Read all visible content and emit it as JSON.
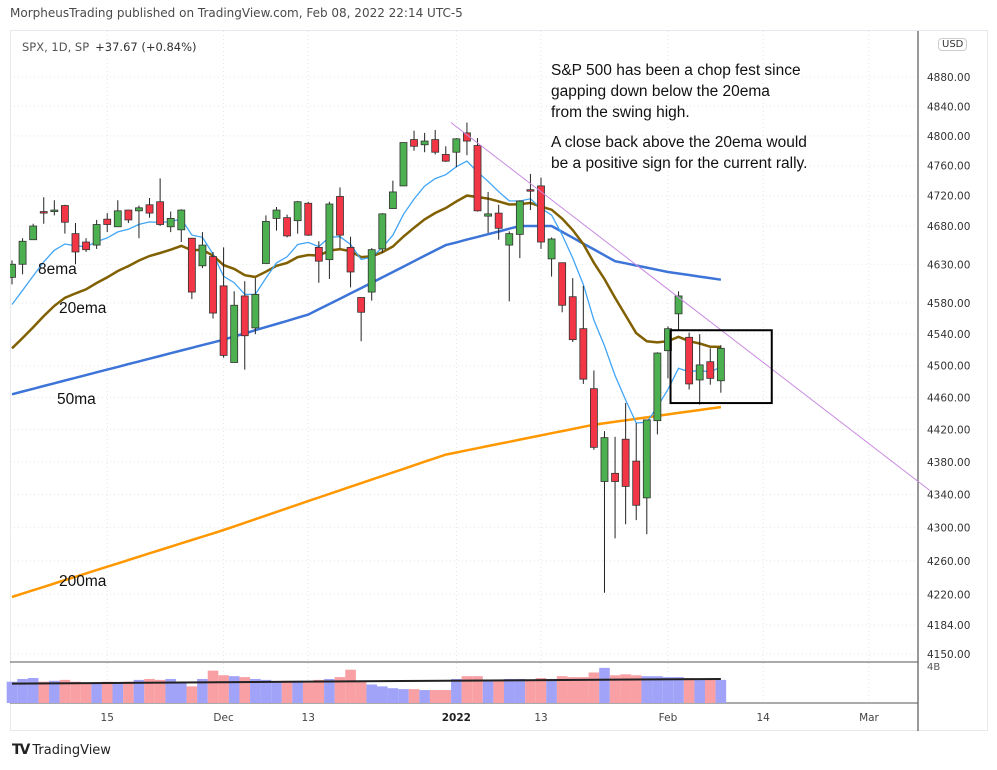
{
  "header": {
    "published": "MorpheusTrading published on TradingView.com, Feb 08, 2022 22:14 UTC-5"
  },
  "legend": {
    "symbol": "SPX, 1D, SP",
    "change": "+37.67 (+0.84%)"
  },
  "currency_badge": "USD",
  "brand": {
    "logo": "TV",
    "name": "TradingView"
  },
  "annotations": {
    "note1": [
      "S&P 500 has been a chop fest since",
      "gapping down below the 20ema",
      "from the swing high."
    ],
    "note2": [
      "A close back above the 20ema would",
      "be a positive sign for the current rally."
    ],
    "ma_labels": {
      "ema8": "8ema",
      "ema20": "20ema",
      "ma50": "50ma",
      "ma200": "200ma"
    }
  },
  "colors": {
    "up": "#4caf50",
    "down": "#f23645",
    "ema8": "#42a5f5",
    "ema20": "#806000",
    "ma50": "#3d74d8",
    "ma200": "#ff9800",
    "trend": "#c98be0",
    "vol_up": "#a0a3f8",
    "vol_down": "#f8a0a4"
  },
  "chart_data": {
    "type": "candlestick",
    "symbol": "SPX",
    "interval": "1D",
    "scale": "log",
    "ylim": [
      4150,
      4900
    ],
    "y_ticks": [
      "4880.00",
      "4840.00",
      "4800.00",
      "4760.00",
      "4720.00",
      "4680.00",
      "4630.00",
      "4580.00",
      "4540.00",
      "4500.00",
      "4460.00",
      "4420.00",
      "4380.00",
      "4340.00",
      "4300.00",
      "4260.00",
      "4220.00",
      "4184.00",
      "4150.00"
    ],
    "x_ticks": [
      {
        "label": "15",
        "index": 9
      },
      {
        "label": "Dec",
        "index": 20
      },
      {
        "label": "13",
        "index": 28
      },
      {
        "label": "2022",
        "index": 42
      },
      {
        "label": "13",
        "index": 50
      },
      {
        "label": "Feb",
        "index": 62
      },
      {
        "label": "14",
        "index": 71
      },
      {
        "label": "Mar",
        "index": 81
      }
    ],
    "volume_tick": "4B",
    "ohlc": [
      [
        4613,
        4635,
        4604,
        4630
      ],
      [
        4630,
        4664,
        4617,
        4660
      ],
      [
        4662,
        4683,
        4662,
        4680
      ],
      [
        4699,
        4718,
        4683,
        4697
      ],
      [
        4701,
        4714,
        4694,
        4701
      ],
      [
        4707,
        4708,
        4670,
        4685
      ],
      [
        4670,
        4684,
        4630,
        4646
      ],
      [
        4659,
        4664,
        4646,
        4649
      ],
      [
        4655,
        4688,
        4650,
        4682
      ],
      [
        4689,
        4697,
        4672,
        4682
      ],
      [
        4679,
        4714,
        4679,
        4700
      ],
      [
        4701,
        4701,
        4684,
        4688
      ],
      [
        4700,
        4707,
        4664,
        4704
      ],
      [
        4708,
        4717,
        4691,
        4697
      ],
      [
        4712,
        4743,
        4680,
        4682
      ],
      [
        4679,
        4699,
        4672,
        4690
      ],
      [
        4675,
        4702,
        4659,
        4701
      ],
      [
        4664,
        4664,
        4585,
        4594
      ],
      [
        4628,
        4672,
        4625,
        4655
      ],
      [
        4640,
        4646,
        4560,
        4567
      ],
      [
        4602,
        4652,
        4510,
        4513
      ],
      [
        4504,
        4595,
        4504,
        4577
      ],
      [
        4589,
        4608,
        4495,
        4538
      ],
      [
        4548,
        4612,
        4540,
        4591
      ],
      [
        4631,
        4694,
        4631,
        4686
      ],
      [
        4690,
        4705,
        4674,
        4701
      ],
      [
        4691,
        4695,
        4665,
        4667
      ],
      [
        4687,
        4713,
        4670,
        4712
      ],
      [
        4710,
        4712,
        4667,
        4668
      ],
      [
        4652,
        4660,
        4606,
        4634
      ],
      [
        4636,
        4712,
        4611,
        4709
      ],
      [
        4719,
        4731,
        4651,
        4668
      ],
      [
        4652,
        4666,
        4600,
        4620
      ],
      [
        4587,
        4587,
        4531,
        4568
      ],
      [
        4594,
        4651,
        4583,
        4649
      ],
      [
        4650,
        4697,
        4645,
        4696
      ],
      [
        4703,
        4740,
        4703,
        4725
      ],
      [
        4733,
        4791,
        4733,
        4791
      ],
      [
        4795,
        4807,
        4780,
        4786
      ],
      [
        4788,
        4804,
        4778,
        4793
      ],
      [
        4795,
        4808,
        4775,
        4778
      ],
      [
        4775,
        4786,
        4765,
        4766
      ],
      [
        4778,
        4797,
        4758,
        4796
      ],
      [
        4804,
        4818,
        4774,
        4793
      ],
      [
        4787,
        4797,
        4699,
        4700
      ],
      [
        4693,
        4725,
        4671,
        4696
      ],
      [
        4697,
        4708,
        4662,
        4677
      ],
      [
        4655,
        4673,
        4582,
        4670
      ],
      [
        4669,
        4714,
        4638,
        4713
      ],
      [
        4728,
        4749,
        4701,
        4726
      ],
      [
        4733,
        4744,
        4650,
        4659
      ],
      [
        4637,
        4665,
        4614,
        4663
      ],
      [
        4632,
        4632,
        4568,
        4577
      ],
      [
        4588,
        4612,
        4530,
        4533
      ],
      [
        4547,
        4602,
        4477,
        4483
      ],
      [
        4471,
        4494,
        4395,
        4398
      ],
      [
        4356,
        4418,
        4222,
        4410
      ],
      [
        4366,
        4411,
        4287,
        4356
      ],
      [
        4408,
        4453,
        4304,
        4350
      ],
      [
        4381,
        4428,
        4309,
        4327
      ],
      [
        4336,
        4432,
        4292,
        4432
      ],
      [
        4431,
        4517,
        4414,
        4516
      ],
      [
        4519,
        4550,
        4484,
        4547
      ],
      [
        4566,
        4595,
        4544,
        4589
      ],
      [
        4536,
        4542,
        4470,
        4477
      ],
      [
        4482,
        4540,
        4451,
        4501
      ],
      [
        4505,
        4522,
        4476,
        4484
      ],
      [
        4481,
        4526,
        4466,
        4522
      ]
    ],
    "volume_b": [
      2.3,
      2.6,
      2.7,
      2.3,
      2.4,
      2.5,
      2.3,
      2.1,
      2.2,
      2.3,
      2.2,
      2.3,
      2.5,
      2.6,
      2.5,
      2.6,
      2.2,
      1.8,
      2.6,
      3.5,
      3.0,
      2.9,
      2.8,
      2.6,
      2.5,
      2.3,
      2.4,
      2.4,
      2.2,
      2.5,
      2.6,
      2.8,
      3.6,
      2.4,
      2.0,
      1.8,
      1.6,
      1.5,
      1.5,
      1.4,
      1.4,
      1.4,
      2.6,
      2.9,
      2.9,
      2.5,
      2.4,
      2.6,
      2.6,
      2.4,
      2.7,
      2.6,
      2.9,
      2.8,
      2.8,
      3.3,
      3.8,
      3.0,
      3.1,
      3.0,
      2.9,
      2.9,
      2.8,
      2.8,
      2.7,
      2.6,
      2.6,
      2.5
    ],
    "volume_ma_b": [
      2.1,
      2.6
    ],
    "ema8_seed": 4578,
    "ema20_seed": 4522,
    "ma50_points": [
      [
        0,
        4464
      ],
      [
        20,
        4533
      ],
      [
        28,
        4565
      ],
      [
        34,
        4606
      ],
      [
        41,
        4655
      ],
      [
        48,
        4680
      ],
      [
        51,
        4680
      ],
      [
        57,
        4634
      ],
      [
        62,
        4620
      ],
      [
        67,
        4610
      ]
    ],
    "ma200_points": [
      [
        0,
        4217
      ],
      [
        20,
        4297
      ],
      [
        41,
        4389
      ],
      [
        55,
        4426
      ],
      [
        67,
        4448
      ]
    ],
    "trendline": {
      "from": [
        43,
        4818
      ],
      "to": [
        86,
        4345
      ]
    },
    "highlight_box": {
      "from_index": 63,
      "to_index": 72,
      "price_top": 4545,
      "price_bottom": 4453
    }
  }
}
